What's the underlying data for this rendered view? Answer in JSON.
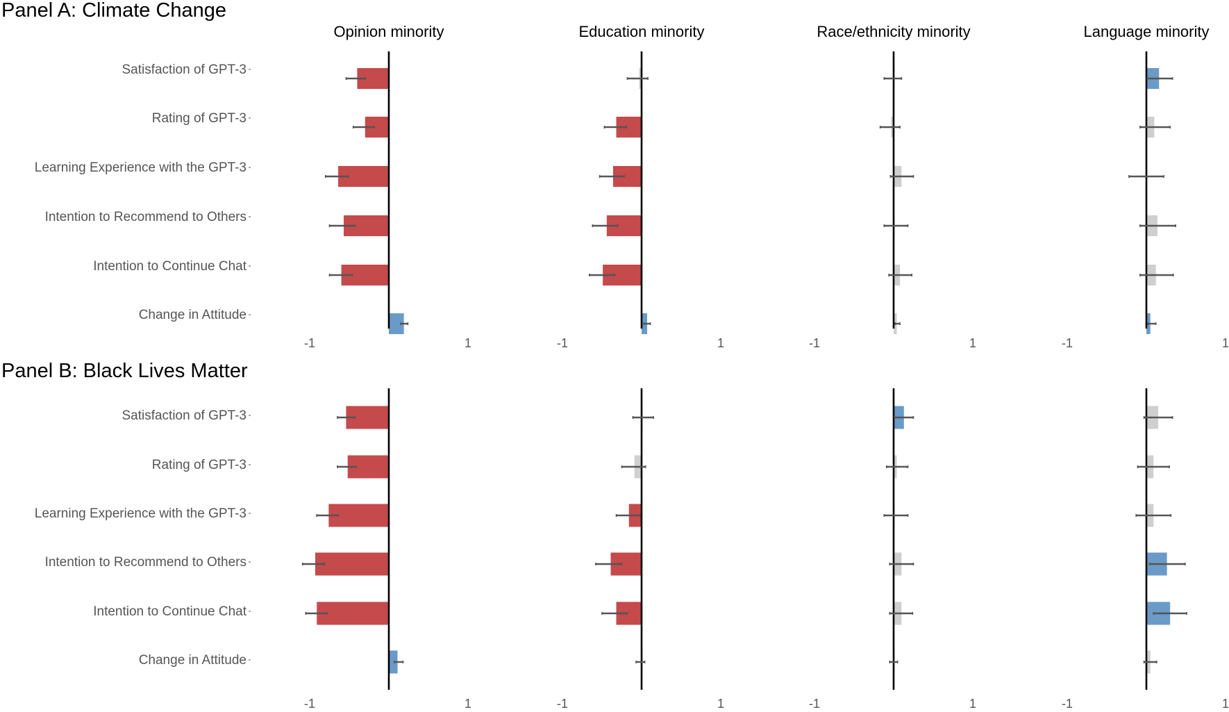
{
  "colors": {
    "negative": "#C44A4C",
    "positive": "#6A9BC8",
    "nonsignificant": "#CFCFCF",
    "errorbar": "#555555",
    "axis": "#000000"
  },
  "chart_data": {
    "type": "bar",
    "orientation": "horizontal",
    "grid": false,
    "xlim": [
      -1,
      1
    ],
    "x_ticks": [
      "-1",
      "1"
    ],
    "columns": [
      "Opinion minority",
      "Education minority",
      "Race/ethnicity minority",
      "Language minority"
    ],
    "categories": [
      "Satisfaction of GPT-3",
      "Rating of GPT-3",
      "Learning Experience with the GPT-3",
      "Intention to Recommend to Others",
      "Intention to Continue Chat",
      "Change in Attitude"
    ],
    "panels": [
      {
        "title": "Panel A: Climate Change",
        "series": [
          {
            "name": "Opinion minority",
            "values": [
              -0.4,
              -0.3,
              -0.64,
              -0.57,
              -0.6,
              0.19
            ],
            "ci_low": [
              -0.54,
              -0.45,
              -0.8,
              -0.75,
              -0.75,
              0.15
            ],
            "ci_high": [
              -0.3,
              -0.18,
              -0.51,
              -0.43,
              -0.46,
              0.24
            ],
            "significance": [
              "neg",
              "neg",
              "neg",
              "neg",
              "neg",
              "pos"
            ]
          },
          {
            "name": "Education minority",
            "values": [
              -0.03,
              -0.32,
              -0.36,
              -0.44,
              -0.49,
              0.07
            ],
            "ci_low": [
              -0.18,
              -0.47,
              -0.53,
              -0.62,
              -0.66,
              0.03
            ],
            "ci_high": [
              0.08,
              -0.19,
              -0.22,
              -0.3,
              -0.34,
              0.11
            ],
            "significance": [
              "ns",
              "neg",
              "neg",
              "neg",
              "neg",
              "pos"
            ]
          },
          {
            "name": "Race/ethnicity minority",
            "values": [
              0.0,
              -0.03,
              0.1,
              0.01,
              0.08,
              0.04
            ],
            "ci_low": [
              -0.12,
              -0.17,
              -0.04,
              -0.12,
              -0.06,
              0.02
            ],
            "ci_high": [
              0.1,
              0.08,
              0.25,
              0.18,
              0.23,
              0.08
            ],
            "significance": [
              "ns",
              "ns",
              "ns",
              "ns",
              "ns",
              "ns"
            ]
          },
          {
            "name": "Language minority",
            "values": [
              0.16,
              0.1,
              0.0,
              0.14,
              0.12,
              0.05
            ],
            "ci_low": [
              0.01,
              -0.08,
              -0.22,
              -0.08,
              -0.08,
              0.02
            ],
            "ci_high": [
              0.33,
              0.3,
              0.22,
              0.37,
              0.34,
              0.12
            ],
            "significance": [
              "pos",
              "ns",
              "ns",
              "ns",
              "ns",
              "pos"
            ]
          }
        ]
      },
      {
        "title": "Panel B: Black Lives Matter",
        "series": [
          {
            "name": "Opinion minority",
            "values": [
              -0.54,
              -0.52,
              -0.76,
              -0.93,
              -0.91,
              0.11
            ],
            "ci_low": [
              -0.65,
              -0.65,
              -0.91,
              -1.09,
              -1.05,
              0.07
            ],
            "ci_high": [
              -0.43,
              -0.41,
              -0.64,
              -0.81,
              -0.78,
              0.18
            ],
            "significance": [
              "neg",
              "neg",
              "neg",
              "neg",
              "neg",
              "pos"
            ]
          },
          {
            "name": "Education minority",
            "values": [
              0.0,
              -0.09,
              -0.16,
              -0.39,
              -0.32,
              0.0
            ],
            "ci_low": [
              -0.11,
              -0.25,
              -0.32,
              -0.58,
              -0.5,
              -0.07
            ],
            "ci_high": [
              0.15,
              0.05,
              -0.02,
              -0.25,
              -0.18,
              0.04
            ],
            "significance": [
              "ns",
              "ns",
              "neg",
              "neg",
              "neg",
              "ns"
            ]
          },
          {
            "name": "Race/ethnicity minority",
            "values": [
              0.13,
              0.04,
              0.0,
              0.1,
              0.1,
              0.0
            ],
            "ci_low": [
              0.01,
              -0.09,
              -0.12,
              -0.05,
              -0.05,
              -0.05
            ],
            "ci_high": [
              0.25,
              0.18,
              0.18,
              0.25,
              0.24,
              0.05
            ],
            "significance": [
              "pos",
              "ns",
              "ns",
              "ns",
              "ns",
              "ns"
            ]
          },
          {
            "name": "Language minority",
            "values": [
              0.15,
              0.09,
              0.09,
              0.26,
              0.3,
              0.05
            ],
            "ci_low": [
              -0.03,
              -0.11,
              -0.13,
              0.04,
              0.09,
              -0.03
            ],
            "ci_high": [
              0.33,
              0.29,
              0.31,
              0.49,
              0.51,
              0.13
            ],
            "significance": [
              "ns",
              "ns",
              "ns",
              "pos",
              "pos",
              "ns"
            ]
          }
        ]
      }
    ]
  }
}
